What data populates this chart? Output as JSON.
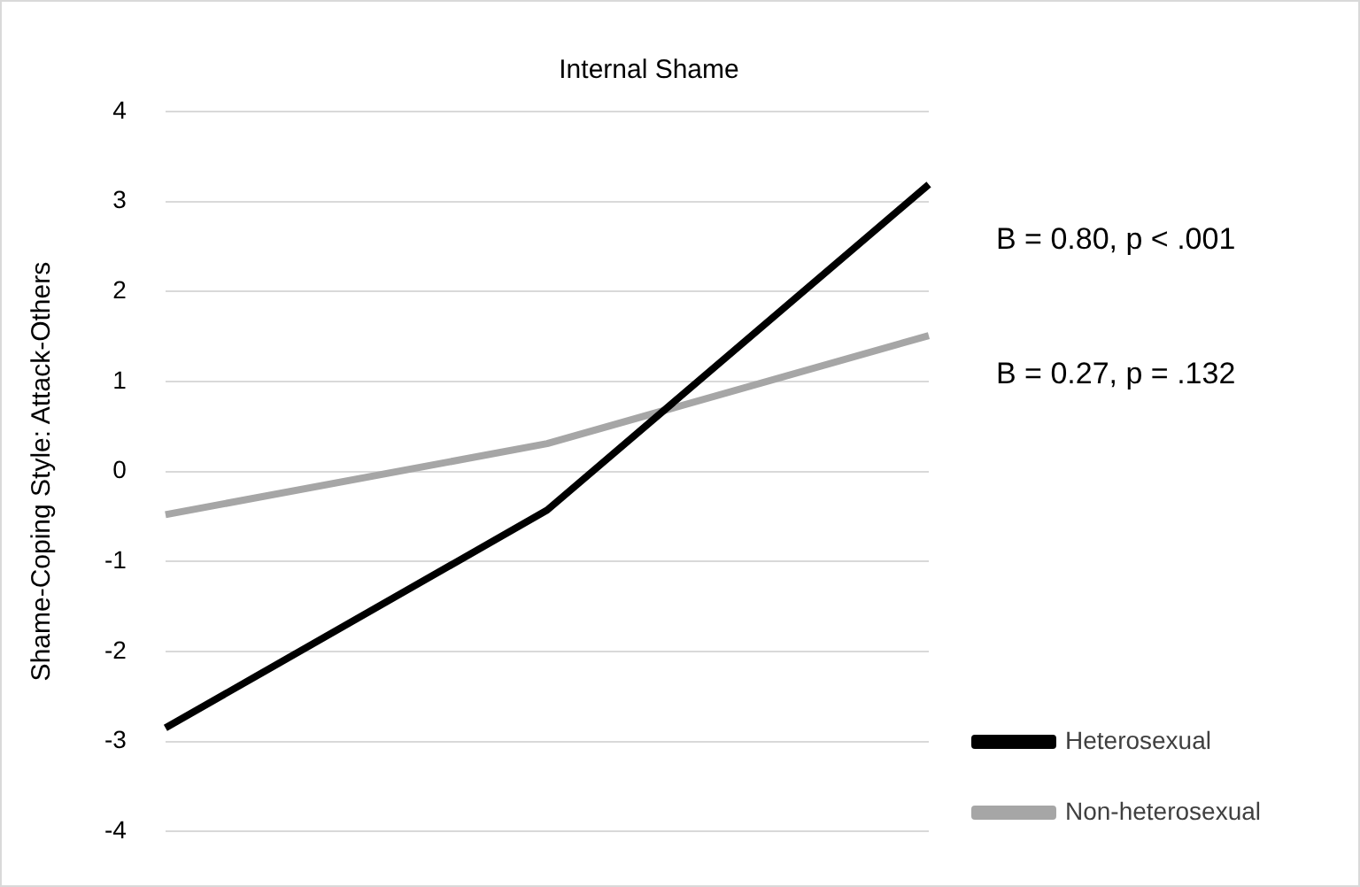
{
  "chart_data": {
    "type": "line",
    "title": "Internal Shame",
    "ylabel": "Shame-Coping Style: Attack-Others",
    "categories": [
      null,
      null,
      null
    ],
    "series": [
      {
        "name": "Heterosexual",
        "color": "#000000",
        "values": [
          -2.85,
          -0.43,
          3.19
        ]
      },
      {
        "name": "Non-heterosexual",
        "color": "#a6a6a6",
        "values": [
          -0.48,
          0.31,
          1.51
        ]
      }
    ],
    "ylim": [
      -4,
      4
    ],
    "yticks": [
      -4,
      -3,
      -2,
      -1,
      0,
      1,
      2,
      3,
      4
    ],
    "grid": "y",
    "legend": "right",
    "marker": "none",
    "line_style": "solid",
    "annotations": [
      "B = 0.80, p < .001",
      "B = 0.27, p = .132"
    ]
  }
}
